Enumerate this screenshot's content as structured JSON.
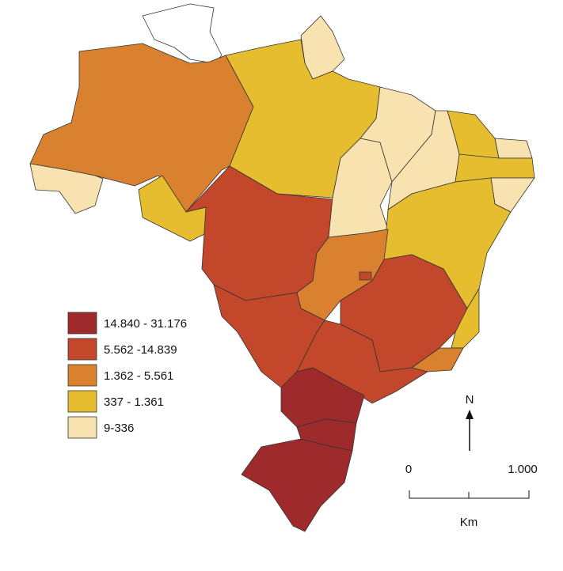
{
  "legend": {
    "items": [
      {
        "label": "14.840 - 31.176",
        "color": "#9e2a2b"
      },
      {
        "label": "5.562 -14.839",
        "color": "#c3472a"
      },
      {
        "label": "1.362 - 5.561",
        "color": "#d9812f"
      },
      {
        "label": "337 - 1.361",
        "color": "#e6bd2e"
      },
      {
        "label": "9-336",
        "color": "#f8e2b0"
      }
    ]
  },
  "north_arrow": {
    "label": "N"
  },
  "scale_bar": {
    "ticks": [
      "0",
      "1.000"
    ],
    "unit": "Km"
  }
}
